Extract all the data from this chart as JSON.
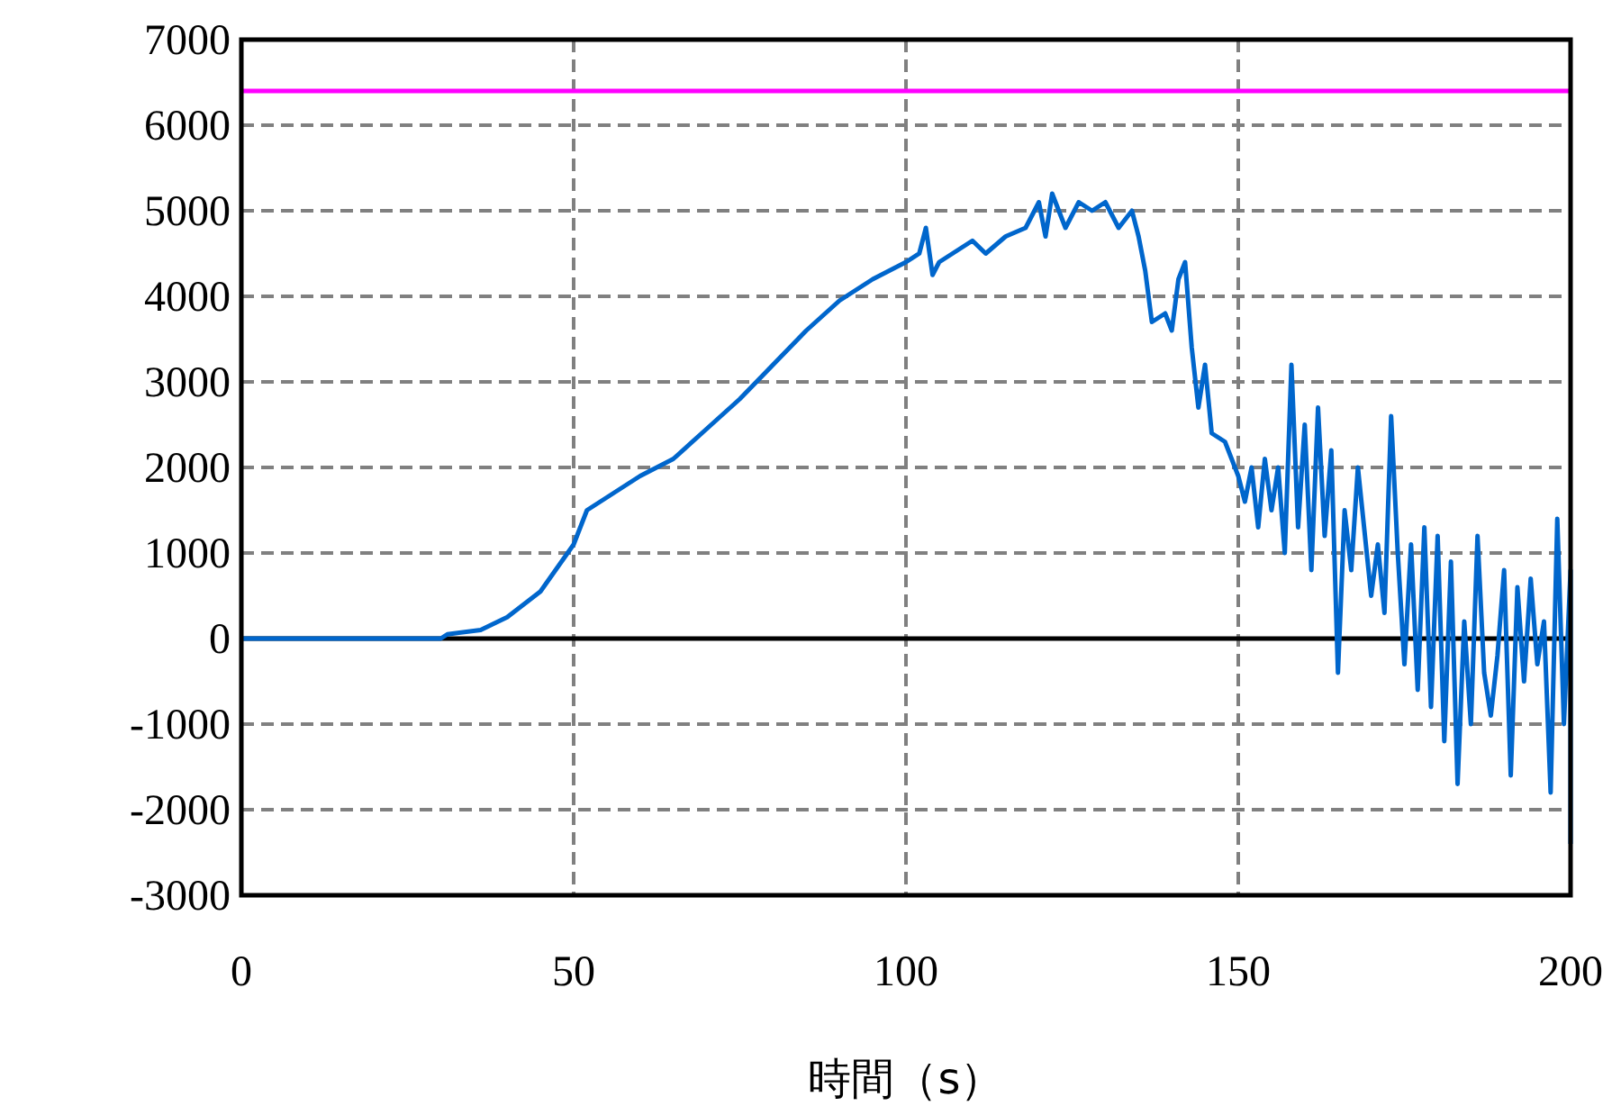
{
  "chart_data": {
    "type": "line",
    "xlabel": "時間（s）",
    "xlim": [
      0,
      200
    ],
    "xticks": [
      0,
      50,
      100,
      150,
      200
    ],
    "ylim": [
      -3000,
      7000
    ],
    "yticks": [
      -3000,
      -2000,
      -1000,
      0,
      1000,
      2000,
      3000,
      4000,
      5000,
      6000,
      7000
    ],
    "grid": true,
    "line_style": "solid",
    "ref_lines": [
      {
        "axis": "y",
        "value": 6400,
        "color": "#ff00ff"
      },
      {
        "axis": "y",
        "value": 0,
        "color": "#000000"
      }
    ],
    "series": [
      {
        "color": "#0066cc",
        "x": [
          0,
          30,
          31,
          36,
          40,
          45,
          50,
          52,
          55,
          60,
          65,
          70,
          75,
          80,
          85,
          90,
          95,
          100,
          102,
          103,
          104,
          105,
          110,
          112,
          115,
          118,
          120,
          121,
          122,
          124,
          126,
          128,
          130,
          132,
          134,
          135,
          136,
          137,
          139,
          140,
          141,
          142,
          143,
          144,
          145,
          146,
          148,
          150,
          151,
          152,
          153,
          154,
          155,
          156,
          157,
          158,
          159,
          160,
          161,
          162,
          163,
          164,
          165,
          166,
          167,
          168,
          170,
          171,
          172,
          173,
          174,
          175,
          176,
          177,
          178,
          179,
          180,
          181,
          182,
          183,
          184,
          185,
          186,
          187,
          188,
          189,
          190,
          191,
          192,
          193,
          194,
          195,
          196,
          197,
          198,
          199,
          200,
          200
        ],
        "values": [
          0,
          0,
          50,
          100,
          250,
          550,
          1100,
          1500,
          1650,
          1900,
          2100,
          2450,
          2800,
          3200,
          3600,
          3950,
          4200,
          4400,
          4500,
          4800,
          4250,
          4400,
          4650,
          4500,
          4700,
          4800,
          5100,
          4700,
          5200,
          4800,
          5100,
          5000,
          5100,
          4800,
          5000,
          4700,
          4300,
          3700,
          3800,
          3600,
          4200,
          4400,
          3400,
          2700,
          3200,
          2400,
          2300,
          1900,
          1600,
          2000,
          1300,
          2100,
          1500,
          2000,
          1000,
          3200,
          1300,
          2500,
          800,
          2700,
          1200,
          2200,
          -400,
          1500,
          800,
          2000,
          500,
          1100,
          300,
          2600,
          1000,
          -300,
          1100,
          -600,
          1300,
          -800,
          1200,
          -1200,
          900,
          -1700,
          200,
          -1000,
          1200,
          -400,
          -900,
          -200,
          800,
          -1600,
          600,
          -500,
          700,
          -300,
          200,
          -1800,
          1400,
          -1000,
          800,
          -2400
        ]
      }
    ]
  }
}
